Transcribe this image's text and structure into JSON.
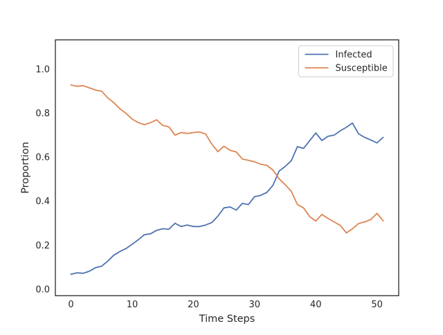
{
  "chart_data": {
    "type": "line",
    "title": "",
    "xlabel": "Time Steps",
    "ylabel": "Proportion",
    "x": [
      0,
      1,
      2,
      3,
      4,
      5,
      6,
      7,
      8,
      9,
      10,
      11,
      12,
      13,
      14,
      15,
      16,
      17,
      18,
      19,
      20,
      21,
      22,
      23,
      24,
      25,
      26,
      27,
      28,
      29,
      30,
      31,
      32,
      33,
      34,
      35,
      36,
      37,
      38,
      39,
      40,
      41,
      42,
      43,
      44,
      45,
      46,
      47,
      48,
      49,
      50,
      51
    ],
    "series": [
      {
        "name": "Infected",
        "color": "#4C72B0",
        "values": [
          0.068,
          0.075,
          0.073,
          0.082,
          0.098,
          0.105,
          0.128,
          0.155,
          0.172,
          0.185,
          0.205,
          0.225,
          0.248,
          0.252,
          0.268,
          0.275,
          0.273,
          0.3,
          0.285,
          0.292,
          0.285,
          0.285,
          0.292,
          0.303,
          0.332,
          0.37,
          0.374,
          0.36,
          0.39,
          0.385,
          0.421,
          0.427,
          0.44,
          0.472,
          0.537,
          0.558,
          0.584,
          0.648,
          0.64,
          0.675,
          0.71,
          0.676,
          0.695,
          0.7,
          0.72,
          0.736,
          0.755,
          0.706,
          0.69,
          0.678,
          0.665,
          0.69
        ]
      },
      {
        "name": "Susceptible",
        "color": "#DD8452",
        "values": [
          0.928,
          0.922,
          0.925,
          0.915,
          0.905,
          0.9,
          0.87,
          0.848,
          0.82,
          0.799,
          0.773,
          0.757,
          0.748,
          0.757,
          0.77,
          0.744,
          0.738,
          0.7,
          0.712,
          0.708,
          0.712,
          0.715,
          0.705,
          0.66,
          0.625,
          0.65,
          0.631,
          0.624,
          0.592,
          0.586,
          0.579,
          0.568,
          0.563,
          0.542,
          0.502,
          0.475,
          0.445,
          0.385,
          0.37,
          0.33,
          0.31,
          0.34,
          0.322,
          0.306,
          0.29,
          0.256,
          0.275,
          0.299,
          0.306,
          0.317,
          0.345,
          0.311
        ]
      }
    ],
    "xtick_values": [
      0,
      10,
      20,
      30,
      40,
      50
    ],
    "xtick_labels": [
      "0",
      "10",
      "20",
      "30",
      "40",
      "50"
    ],
    "ytick_values": [
      0.0,
      0.2,
      0.4,
      0.6,
      0.8,
      1.0
    ],
    "ytick_labels": [
      "0.0",
      "0.2",
      "0.4",
      "0.6",
      "0.8",
      "1.0"
    ],
    "xlim": [
      -2.55,
      53.55
    ],
    "ylim": [
      -0.029,
      1.133
    ],
    "grid": false,
    "legend_position": "upper right",
    "line_width": 1.8,
    "axes_edge_color": "#262626",
    "legend_border_color": "#cccccc",
    "background_color": "#ffffff"
  }
}
